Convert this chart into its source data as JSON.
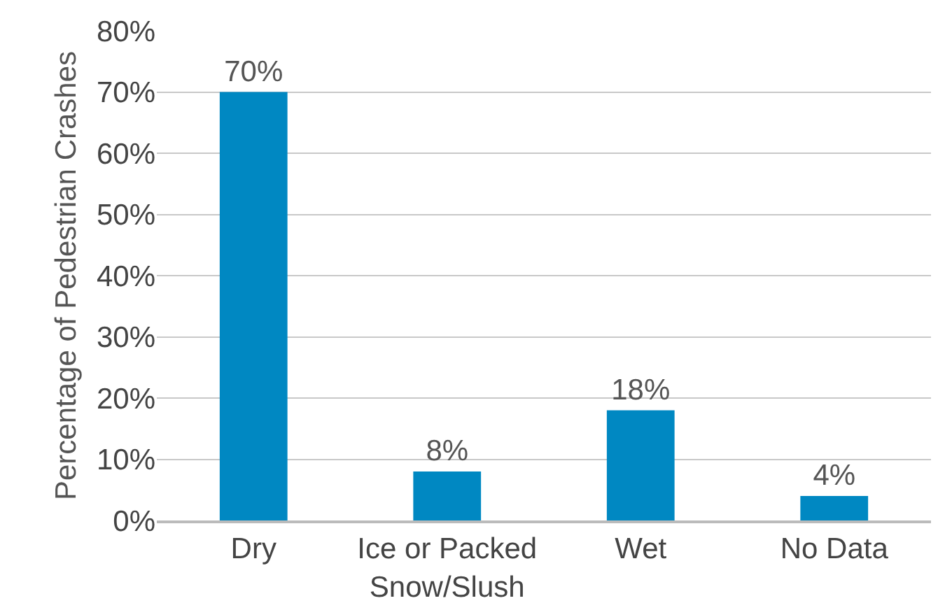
{
  "chart_data": {
    "type": "bar",
    "ylabel": "Percentage of Pedestrian Crashes",
    "categories": [
      "Dry",
      "Ice or Packed Snow/Slush",
      "Wet",
      "No Data"
    ],
    "values": [
      70,
      8,
      18,
      4
    ],
    "color": "#0088c2",
    "data_labels": true,
    "value_labels": [
      "70%",
      "8%",
      "18%",
      "4%"
    ],
    "ylim": [
      0,
      80
    ],
    "yticks": [
      {
        "value": 0,
        "label": "0%"
      },
      {
        "value": 10,
        "label": "10%"
      },
      {
        "value": 20,
        "label": "20%"
      },
      {
        "value": 30,
        "label": "30%"
      },
      {
        "value": 40,
        "label": "40%"
      },
      {
        "value": 50,
        "label": "50%"
      },
      {
        "value": 60,
        "label": "60%"
      },
      {
        "value": 70,
        "label": "70%"
      },
      {
        "value": 80,
        "label": "80%"
      }
    ],
    "grid": "y",
    "legend": false
  }
}
